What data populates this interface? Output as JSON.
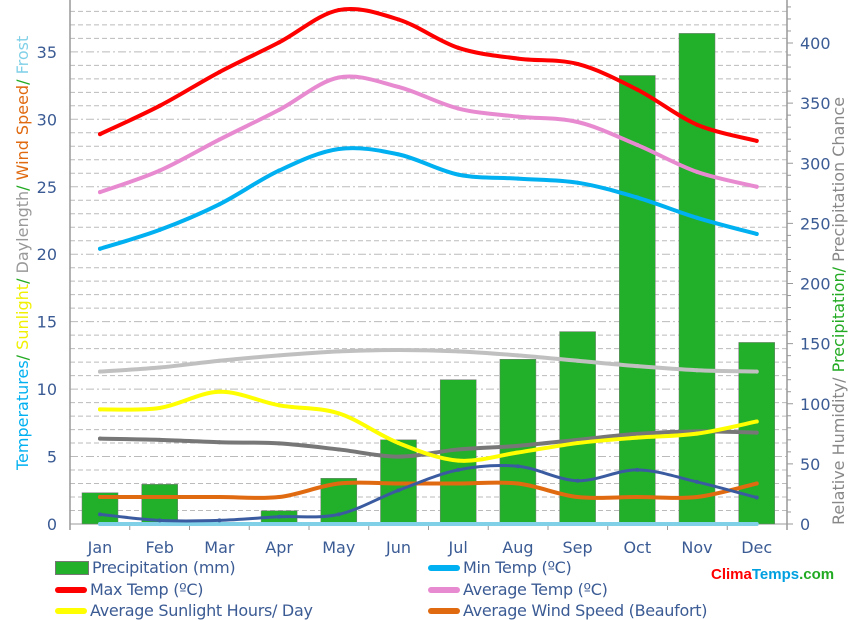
{
  "chart_data": {
    "type": "bar+line",
    "categories": [
      "Jan",
      "Feb",
      "Mar",
      "Apr",
      "May",
      "Jun",
      "Jul",
      "Aug",
      "Sep",
      "Oct",
      "Nov",
      "Dec"
    ],
    "left_axis": {
      "label_parts": [
        {
          "text": "Temperatures",
          "color": "#00b0f0"
        },
        {
          "text": "/ ",
          "color": "#22aa22"
        },
        {
          "text": "Sunlight",
          "color": "#f0f000"
        },
        {
          "text": "/ ",
          "color": "#22aa22"
        },
        {
          "text": "Daylength",
          "color": "#999999"
        },
        {
          "text": "/ ",
          "color": "#22aa22"
        },
        {
          "text": "Wind Speed",
          "color": "#e06a10"
        },
        {
          "text": "/ ",
          "color": "#22aa22"
        },
        {
          "text": "Frost",
          "color": "#80d0e8"
        }
      ],
      "ylim": [
        0,
        36
      ],
      "ticks": [
        "0",
        "5",
        "10",
        "15",
        "20",
        "25",
        "30",
        "35"
      ]
    },
    "right_axis": {
      "label_parts": [
        {
          "text": "Relative Humidity/ ",
          "color": "#888888"
        },
        {
          "text": "Precipitation/ ",
          "color": "#22aa22"
        },
        {
          "text": "Precipitation Chance",
          "color": "#888888"
        }
      ],
      "ylim": [
        0,
        431
      ],
      "ticks": [
        "0",
        "50",
        "100",
        "150",
        "200",
        "250",
        "300",
        "350",
        "400"
      ]
    },
    "bars": {
      "name": "Precipitation (mm)",
      "color": "#22b02a",
      "axis": "right",
      "values": [
        26,
        33,
        0,
        11,
        38,
        70,
        120,
        137,
        160,
        373,
        408,
        151
      ]
    },
    "series": [
      {
        "name": "Max Temp (ºC)",
        "color": "#ff0000",
        "axis": "left",
        "values": [
          28.9,
          31,
          33.5,
          35.7,
          38.1,
          37.4,
          35.3,
          34.5,
          34.1,
          32.2,
          29.6,
          28.4
        ]
      },
      {
        "name": "Average Temp (ºC)",
        "color": "#e88ad0",
        "axis": "left",
        "values": [
          24.6,
          26.2,
          28.5,
          30.7,
          33.1,
          32.4,
          30.8,
          30.2,
          29.8,
          28.1,
          26.1,
          25
        ]
      },
      {
        "name": "Min Temp (ºC)",
        "color": "#00b0f0",
        "axis": "left",
        "values": [
          20.4,
          21.8,
          23.7,
          26.2,
          27.8,
          27.4,
          25.9,
          25.6,
          25.3,
          24.2,
          22.7,
          21.5
        ]
      },
      {
        "name": "Daylength",
        "color": "#c0c0c0",
        "axis": "left",
        "values": [
          11.3,
          11.6,
          12.1,
          12.5,
          12.8,
          12.9,
          12.8,
          12.5,
          12.1,
          11.7,
          11.4,
          11.3
        ]
      },
      {
        "name": "Average Sunlight Hours/ Day",
        "color": "#ffff00",
        "axis": "left",
        "values": [
          8.5,
          8.6,
          9.8,
          8.8,
          8.2,
          6,
          4.7,
          5.3,
          6,
          6.4,
          6.7,
          7.6
        ]
      },
      {
        "name": "Relative Humidity",
        "color": "#777777",
        "axis": "right",
        "values": [
          71,
          70,
          68,
          67,
          62,
          56,
          62,
          65,
          70,
          75,
          77,
          76
        ]
      },
      {
        "name": "Average Wind Speed (Beaufort)",
        "color": "#e06a10",
        "axis": "left",
        "values": [
          2,
          2,
          2,
          2,
          3,
          3,
          3,
          3,
          2,
          2,
          2,
          3
        ]
      },
      {
        "name": "Precipitation Chance",
        "color": "#3b5ba0",
        "axis": "right",
        "values": [
          8,
          3,
          3,
          6,
          8,
          28,
          45,
          48,
          36,
          45,
          35,
          22
        ]
      },
      {
        "name": "Frost",
        "color": "#80d0e8",
        "axis": "left",
        "values": [
          0,
          0,
          0,
          0,
          0,
          0,
          0,
          0,
          0,
          0,
          0,
          0
        ]
      }
    ]
  },
  "legend": [
    {
      "label": "Precipitation (mm)",
      "color": "#22b02a",
      "box": true
    },
    {
      "label": "Min Temp (ºC)",
      "color": "#00b0f0"
    },
    {
      "label": "Max Temp (ºC)",
      "color": "#ff0000"
    },
    {
      "label": "Average Temp (ºC)",
      "color": "#e88ad0"
    },
    {
      "label": "Average Sunlight Hours/ Day",
      "color": "#ffff00"
    },
    {
      "label": "Average Wind Speed (Beaufort)",
      "color": "#e06a10"
    }
  ],
  "logo": {
    "part1": "Clima",
    "part2": "Temps",
    "part3": ".com"
  }
}
